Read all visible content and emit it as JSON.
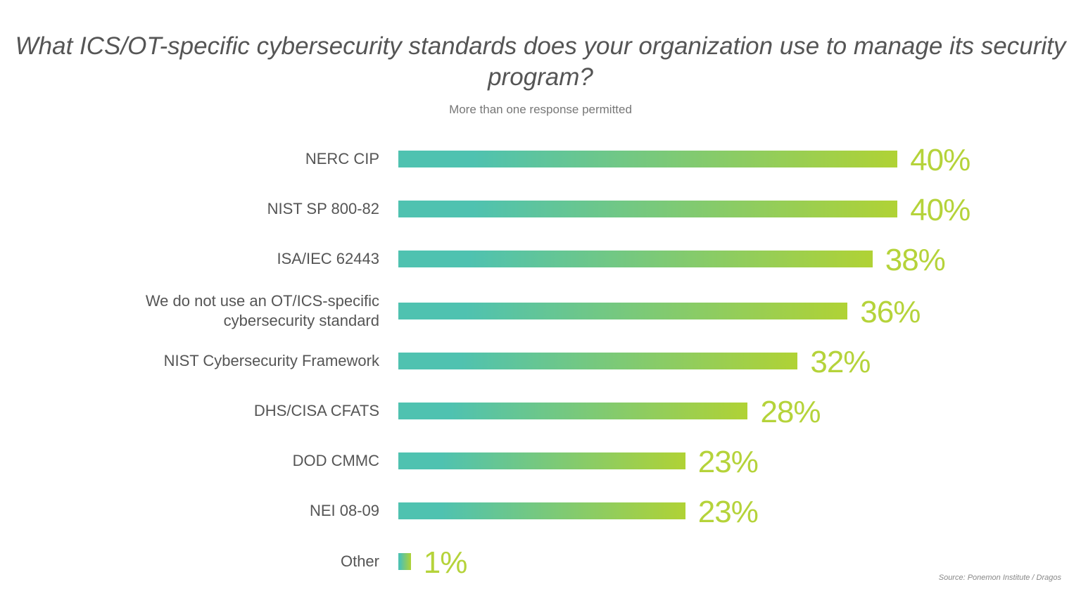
{
  "chart_data": {
    "type": "bar",
    "orientation": "horizontal",
    "title": "What ICS/OT-specific cybersecurity standards does your organization use to manage its security program?",
    "subtitle": "More than one response permitted",
    "source": "Source: Ponemon Institute / Dragos",
    "categories": [
      "NERC CIP",
      "NIST SP 800-82",
      "ISA/IEC 62443",
      "We do not use an OT/ICS-specific cybersecurity standard",
      "NIST Cybersecurity Framework",
      "DHS/CISA CFATS",
      "DOD CMMC",
      "NEI 08-09",
      "Other"
    ],
    "values": [
      40,
      40,
      38,
      36,
      32,
      28,
      23,
      23,
      1
    ],
    "value_labels": [
      "40%",
      "40%",
      "38%",
      "36%",
      "32%",
      "28%",
      "23%",
      "23%",
      "1%"
    ],
    "unit": "%",
    "grid": false,
    "colors": {
      "gradient_start": "#4fc2b0",
      "gradient_end": "#b0d235",
      "value_label": "#b5d33a"
    }
  }
}
